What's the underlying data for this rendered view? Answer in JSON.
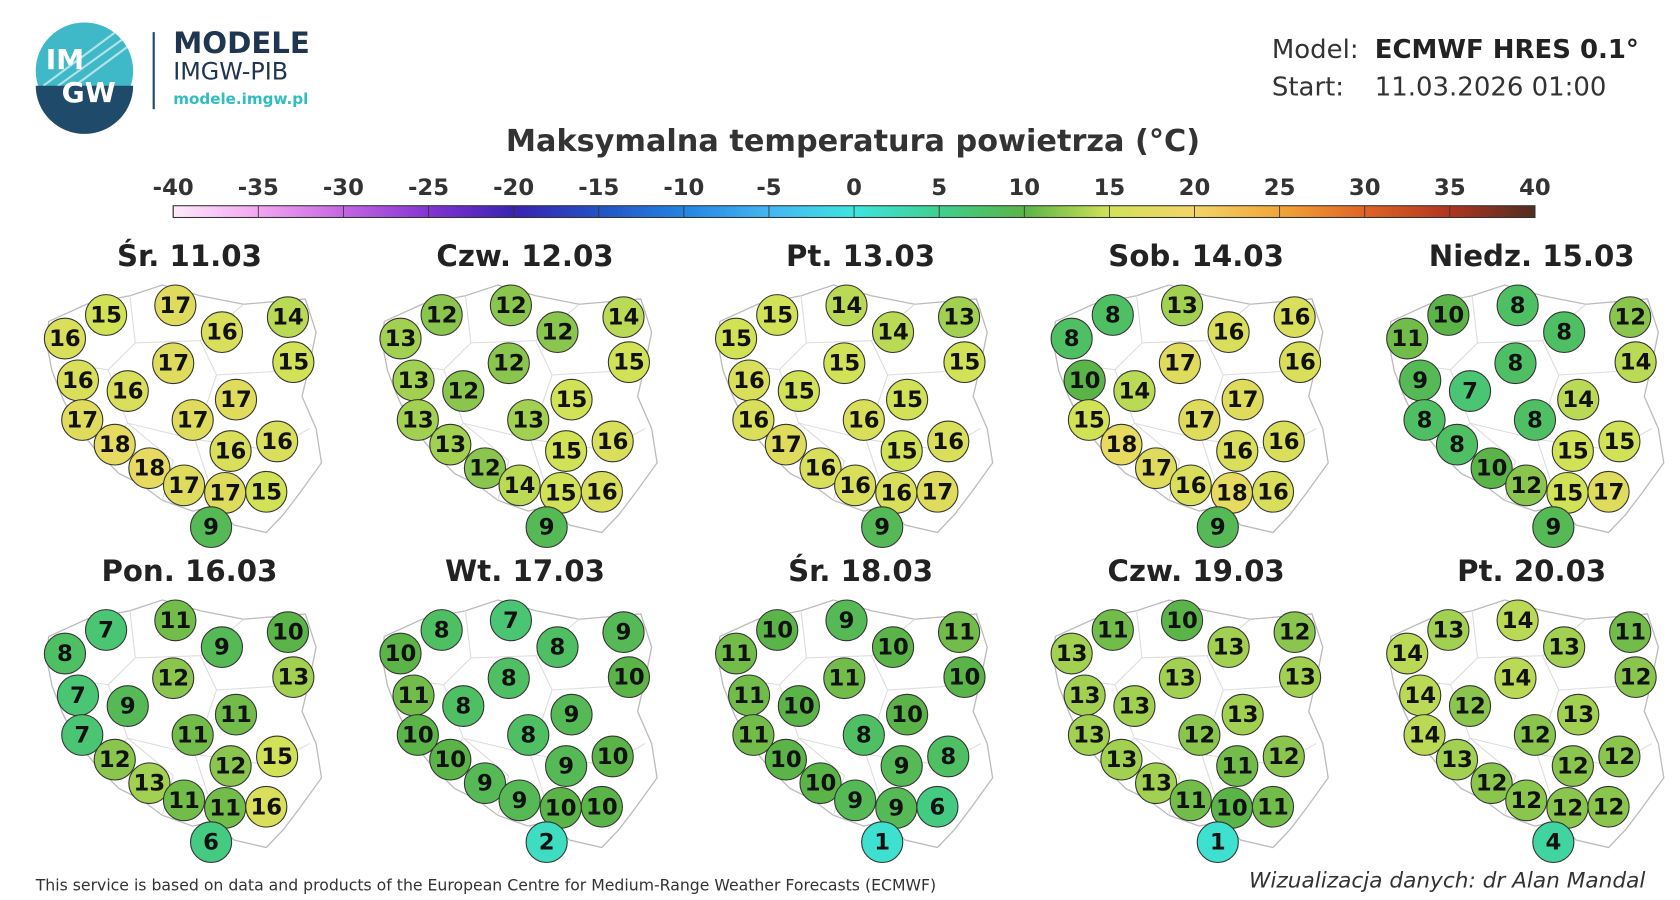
{
  "header": {
    "logo": [
      "IM",
      "GW"
    ],
    "brand": "MODELE",
    "subtitle": "IMGW-PIB",
    "url": "modele.imgw.pl",
    "model_label": "Model:",
    "model": "ECMWF HRES 0.1°",
    "start_label": "Start:",
    "start": "11.03.2026 01:00"
  },
  "title": "Maksymalna temperatura powietrza (°C)",
  "colorbar": {
    "ticks": [
      -40,
      -35,
      -30,
      -25,
      -20,
      -15,
      -10,
      -5,
      0,
      5,
      10,
      15,
      20,
      25,
      30,
      35,
      40
    ],
    "colors": [
      "#fdeafb",
      "#f2a6f0",
      "#c466e2",
      "#8434d2",
      "#3a22b2",
      "#2352c4",
      "#2384e2",
      "#44b6f2",
      "#3ee4e0",
      "#3fd090",
      "#5ab447",
      "#d2e257",
      "#f3d467",
      "#f2a636",
      "#e06424",
      "#b03520",
      "#4f2d22"
    ]
  },
  "maps": [
    {
      "date": "Śr. 11.03",
      "values": [
        16,
        15,
        17,
        16,
        14,
        15,
        17,
        16,
        16,
        17,
        17,
        17,
        18,
        16,
        16,
        18,
        17,
        17,
        15,
        9
      ]
    },
    {
      "date": "Czw. 12.03",
      "values": [
        13,
        12,
        12,
        12,
        14,
        15,
        12,
        13,
        12,
        15,
        13,
        13,
        13,
        15,
        16,
        12,
        14,
        15,
        16,
        9
      ]
    },
    {
      "date": "Pt. 13.03",
      "values": [
        15,
        15,
        14,
        14,
        13,
        15,
        15,
        16,
        15,
        15,
        16,
        16,
        17,
        15,
        16,
        16,
        16,
        16,
        17,
        9
      ]
    },
    {
      "date": "Sob. 14.03",
      "values": [
        8,
        8,
        13,
        16,
        16,
        16,
        17,
        10,
        14,
        17,
        15,
        17,
        18,
        16,
        16,
        17,
        16,
        18,
        16,
        9
      ]
    },
    {
      "date": "Niedz. 15.03",
      "values": [
        11,
        10,
        8,
        8,
        12,
        14,
        8,
        9,
        7,
        14,
        8,
        8,
        8,
        15,
        15,
        10,
        12,
        15,
        17,
        9
      ]
    },
    {
      "date": "Pon. 16.03",
      "values": [
        8,
        7,
        11,
        9,
        10,
        13,
        12,
        7,
        9,
        11,
        7,
        11,
        12,
        12,
        15,
        13,
        11,
        11,
        16,
        6
      ]
    },
    {
      "date": "Wt. 17.03",
      "values": [
        10,
        8,
        7,
        8,
        9,
        10,
        8,
        11,
        8,
        9,
        10,
        8,
        10,
        9,
        10,
        9,
        9,
        10,
        10,
        2
      ]
    },
    {
      "date": "Śr. 18.03",
      "values": [
        11,
        10,
        9,
        10,
        11,
        10,
        11,
        11,
        10,
        10,
        11,
        8,
        10,
        9,
        8,
        10,
        9,
        9,
        6,
        1
      ]
    },
    {
      "date": "Czw. 19.03",
      "values": [
        13,
        11,
        10,
        13,
        12,
        13,
        13,
        13,
        13,
        13,
        13,
        12,
        13,
        11,
        12,
        13,
        11,
        10,
        11,
        1
      ]
    },
    {
      "date": "Pt. 20.03",
      "values": [
        14,
        13,
        14,
        13,
        11,
        12,
        14,
        14,
        12,
        13,
        14,
        12,
        13,
        12,
        12,
        12,
        12,
        12,
        12,
        4
      ]
    }
  ],
  "footer": {
    "source": "This service is based on data and products of the European Centre for Medium-Range Weather Forecasts (ECMWF)",
    "credit": "Wizualizacja danych: dr Alan Mandal"
  }
}
